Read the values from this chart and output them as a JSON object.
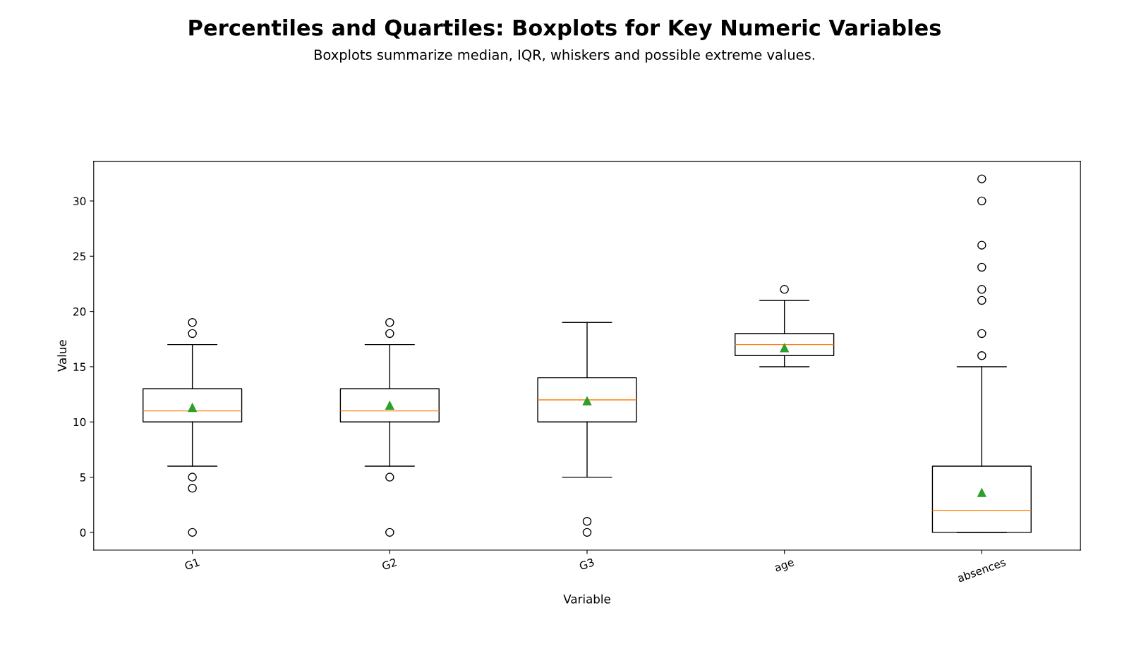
{
  "chart_data": {
    "type": "box",
    "title": "Percentiles and Quartiles: Boxplots for Key Numeric Variables",
    "subtitle": "Boxplots summarize median, IQR, whiskers and possible extreme values.",
    "xlabel": "Variable",
    "ylabel": "Value",
    "categories": [
      "G1",
      "G2",
      "G3",
      "age",
      "absences"
    ],
    "boxes": [
      {
        "low": 6,
        "q1": 10,
        "median": 11,
        "q3": 13,
        "high": 17,
        "mean": 11.3,
        "outliers": [
          19,
          18,
          5,
          4,
          0
        ]
      },
      {
        "low": 6,
        "q1": 10,
        "median": 11,
        "q3": 13,
        "high": 17,
        "mean": 11.5,
        "outliers": [
          19,
          18,
          5,
          0
        ]
      },
      {
        "low": 5,
        "q1": 10,
        "median": 12,
        "q3": 14,
        "high": 19,
        "mean": 11.9,
        "outliers": [
          1,
          0
        ]
      },
      {
        "low": 15,
        "q1": 16,
        "median": 17,
        "q3": 18,
        "high": 21,
        "mean": 16.7,
        "outliers": [
          22
        ]
      },
      {
        "low": 0,
        "q1": 0,
        "median": 2,
        "q3": 6,
        "high": 15,
        "mean": 3.6,
        "outliers": [
          32,
          30,
          26,
          24,
          22,
          21,
          18,
          16
        ]
      }
    ],
    "ylim": [
      -1.6,
      33.6
    ],
    "yticks": [
      0,
      5,
      10,
      15,
      20,
      25,
      30
    ],
    "grid": false
  }
}
